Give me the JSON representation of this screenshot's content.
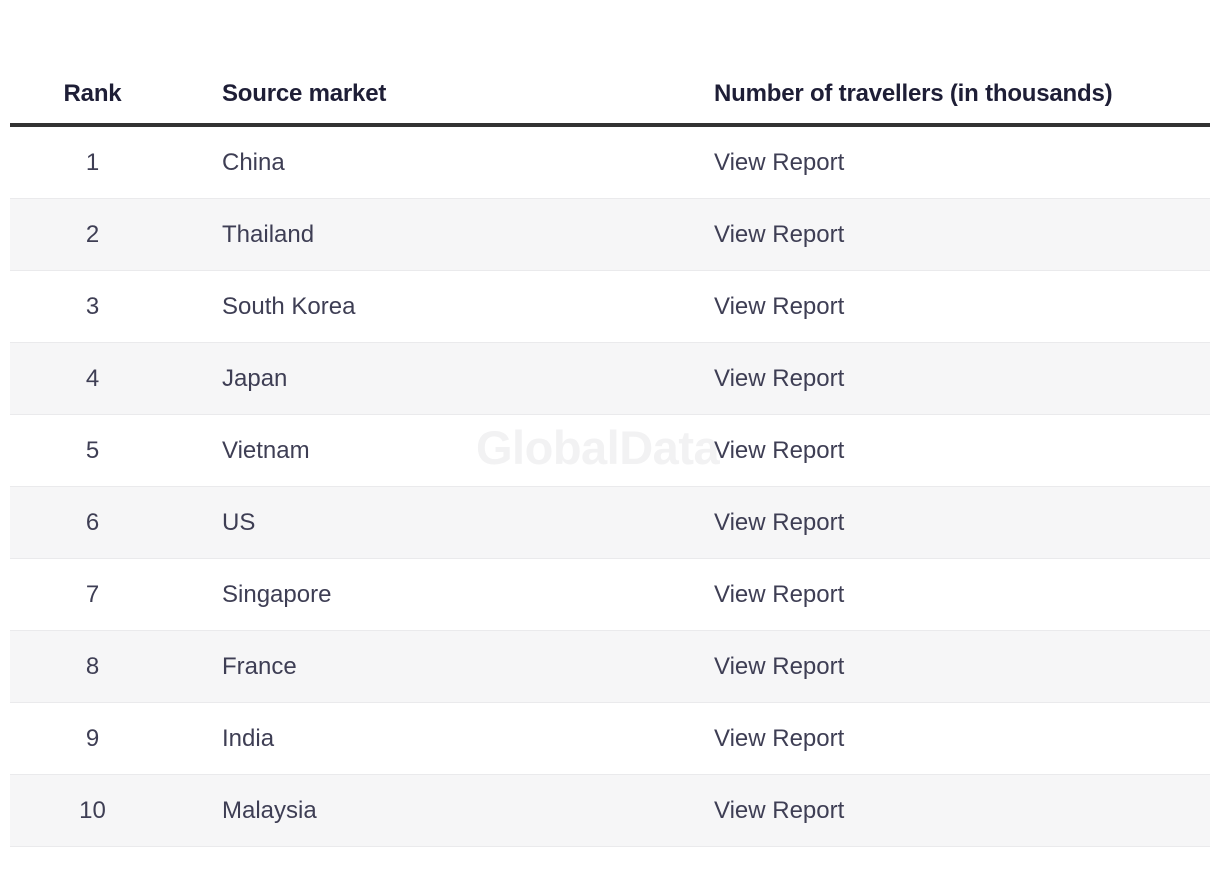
{
  "watermark": {
    "text": "GlobalData"
  },
  "table": {
    "columns": [
      {
        "label": "Rank"
      },
      {
        "label": "Source market"
      },
      {
        "label": "Number of travellers (in thousands)"
      }
    ],
    "rows": [
      {
        "rank": "1",
        "market": "China",
        "report": "View Report"
      },
      {
        "rank": "2",
        "market": "Thailand",
        "report": "View Report"
      },
      {
        "rank": "3",
        "market": "South Korea",
        "report": "View Report"
      },
      {
        "rank": "4",
        "market": "Japan",
        "report": "View Report"
      },
      {
        "rank": "5",
        "market": "Vietnam",
        "report": "View Report"
      },
      {
        "rank": "6",
        "market": "US",
        "report": "View Report"
      },
      {
        "rank": "7",
        "market": "Singapore",
        "report": "View Report"
      },
      {
        "rank": "8",
        "market": "France",
        "report": "View Report"
      },
      {
        "rank": "9",
        "market": "India",
        "report": "View Report"
      },
      {
        "rank": "10",
        "market": "Malaysia",
        "report": "View Report"
      }
    ]
  },
  "colors": {
    "stripe": "#f6f6f7",
    "row_divider": "#eaeaec",
    "header_rule": "#323232",
    "header_text": "#1e1e36",
    "body_text": "#3e3e54",
    "watermark": "#f2f2f3"
  }
}
